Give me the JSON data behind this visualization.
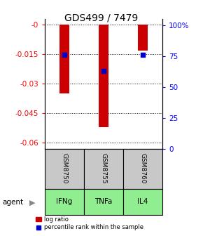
{
  "title": "GDS499 / 7479",
  "categories": [
    "IFNg",
    "TNFa",
    "IL4"
  ],
  "gsm_labels": [
    "GSM8750",
    "GSM8755",
    "GSM8760"
  ],
  "log_ratio": [
    -0.035,
    -0.052,
    -0.013
  ],
  "percentile_rank": [
    76,
    63,
    76
  ],
  "left_ylim": [
    -0.063,
    0.003
  ],
  "left_yticks": [
    0,
    -0.015,
    -0.03,
    -0.045,
    -0.06
  ],
  "left_yticklabels": [
    "-0",
    "-0.015",
    "-0.03",
    "-0.045",
    "-0.06"
  ],
  "right_ylim": [
    0,
    105
  ],
  "right_yticks": [
    0,
    25,
    50,
    75,
    100
  ],
  "right_yticklabels": [
    "0",
    "25",
    "50",
    "75",
    "100%"
  ],
  "bar_color": "#cc0000",
  "dot_color": "#0000cc",
  "bar_width": 0.25,
  "gsm_bg_color": "#c8c8c8",
  "agent_bg_color": "#90ee90",
  "agent_label": "agent",
  "legend_bar_label": "log ratio",
  "legend_dot_label": "percentile rank within the sample",
  "title_fontsize": 10,
  "tick_fontsize": 7.5
}
